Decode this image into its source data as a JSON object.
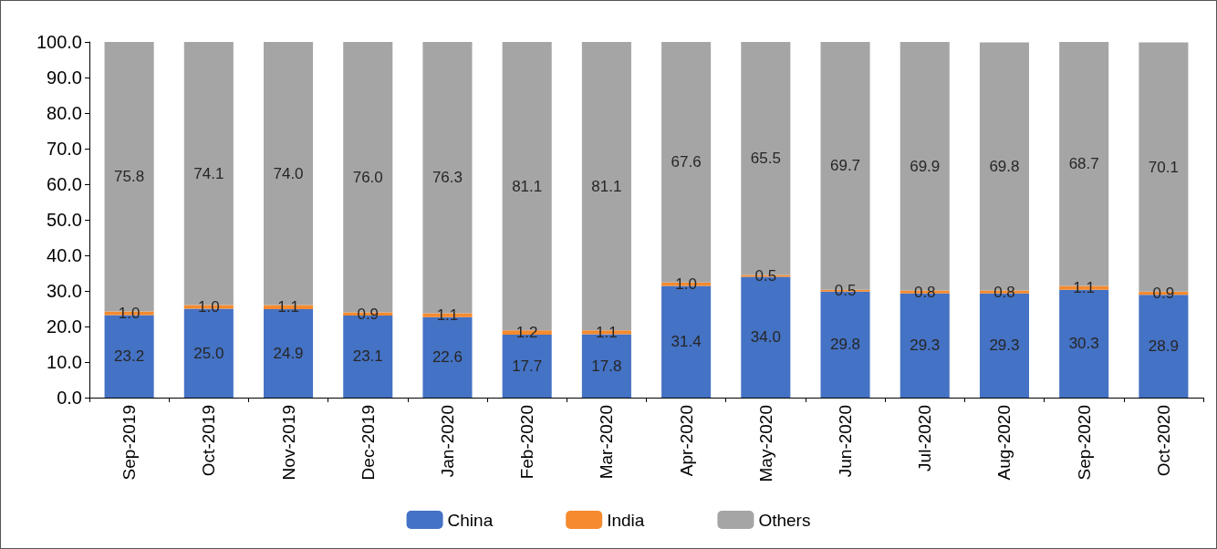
{
  "chart_data": {
    "type": "bar",
    "stacked": true,
    "categories": [
      "Sep-2019",
      "Oct-2019",
      "Nov-2019",
      "Dec-2019",
      "Jan-2020",
      "Feb-2020",
      "Mar-2020",
      "Apr-2020",
      "May-2020",
      "Jun-2020",
      "Jul-2020",
      "Aug-2020",
      "Sep-2020",
      "Oct-2020"
    ],
    "series": [
      {
        "name": "China",
        "color": "#4472c4",
        "values": [
          23.2,
          25.0,
          24.9,
          23.1,
          22.6,
          17.7,
          17.8,
          31.4,
          34.0,
          29.8,
          29.3,
          29.3,
          30.3,
          28.9
        ],
        "value_labels": [
          "23.2",
          "25.0",
          "24.9",
          "23.1",
          "22.6",
          "17.7",
          "17.8",
          "31.4",
          "34.0",
          "29.8",
          "29.3",
          "29.3",
          "30.3",
          "28.9"
        ]
      },
      {
        "name": "India",
        "color": "#f58a2e",
        "values": [
          1.0,
          1.0,
          1.1,
          0.9,
          1.1,
          1.2,
          1.1,
          1.0,
          0.5,
          0.5,
          0.8,
          0.8,
          1.1,
          0.9
        ],
        "value_labels": [
          "1.0",
          "1.0",
          "1.1",
          "0.9",
          "1.1",
          "1.2",
          "1.1",
          "1.0",
          "0.5",
          "0.5",
          "0.8",
          "0.8",
          "1.1",
          "0.9"
        ]
      },
      {
        "name": "Others",
        "color": "#a5a5a5",
        "values": [
          75.8,
          74.1,
          74.0,
          76.0,
          76.3,
          81.1,
          81.1,
          67.6,
          65.5,
          69.7,
          69.9,
          69.8,
          68.7,
          70.1
        ],
        "value_labels": [
          "75.8",
          "74.1",
          "74.0",
          "76.0",
          "76.3",
          "81.1",
          "81.1",
          "67.6",
          "65.5",
          "69.7",
          "69.9",
          "69.8",
          "68.7",
          "70.1"
        ]
      }
    ],
    "ylim": [
      0,
      100
    ],
    "yticks": [
      {
        "value": 0,
        "label": "0.0"
      },
      {
        "value": 10,
        "label": "10.0"
      },
      {
        "value": 20,
        "label": "20.0"
      },
      {
        "value": 30,
        "label": "30.0"
      },
      {
        "value": 40,
        "label": "40.0"
      },
      {
        "value": 50,
        "label": "50.0"
      },
      {
        "value": 60,
        "label": "60.0"
      },
      {
        "value": 70,
        "label": "70.0"
      },
      {
        "value": 80,
        "label": "80.0"
      },
      {
        "value": 90,
        "label": "90.0"
      },
      {
        "value": 100,
        "label": "100.0"
      }
    ],
    "grid": false,
    "legend": "bottom"
  }
}
